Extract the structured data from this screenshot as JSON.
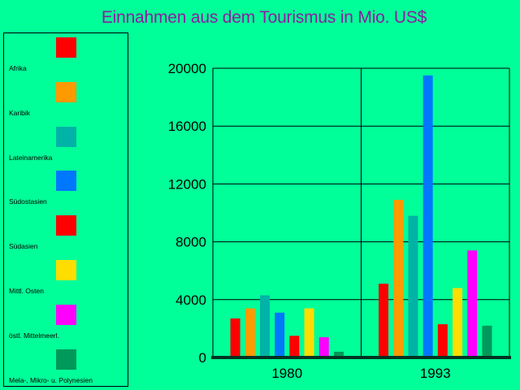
{
  "chart_data": {
    "type": "bar",
    "title": "Einnahmen aus dem Tourismus in Mio. US$",
    "xlabel": "",
    "ylabel": "",
    "categories": [
      "1980",
      "1993"
    ],
    "ylim": [
      0,
      20000
    ],
    "yticks": [
      "0",
      "4000",
      "8000",
      "12000",
      "16000",
      "20000"
    ],
    "grid": true,
    "legend_position": "left",
    "series": [
      {
        "name": "Afrika",
        "color": "#ff0000",
        "values": [
          2700,
          5100
        ]
      },
      {
        "name": "Karibik",
        "color": "#ff9900",
        "values": [
          3400,
          10900
        ]
      },
      {
        "name": "Lateinamerika",
        "color": "#00b3a6",
        "values": [
          4300,
          9800
        ]
      },
      {
        "name": "Südostasien",
        "color": "#0077ff",
        "values": [
          3100,
          19500
        ]
      },
      {
        "name": "Südasien",
        "color": "#ff0000",
        "values": [
          1500,
          2300
        ]
      },
      {
        "name": "Mittl. Osten",
        "color": "#ffdd00",
        "values": [
          3400,
          4800
        ]
      },
      {
        "name": "östl. Mittelmeerl.",
        "color": "#ff00ff",
        "values": [
          1400,
          7400
        ]
      },
      {
        "name": "Mela-, Mikro- u. Polynesien",
        "color": "#00995a",
        "values": [
          400,
          2200
        ]
      }
    ]
  }
}
